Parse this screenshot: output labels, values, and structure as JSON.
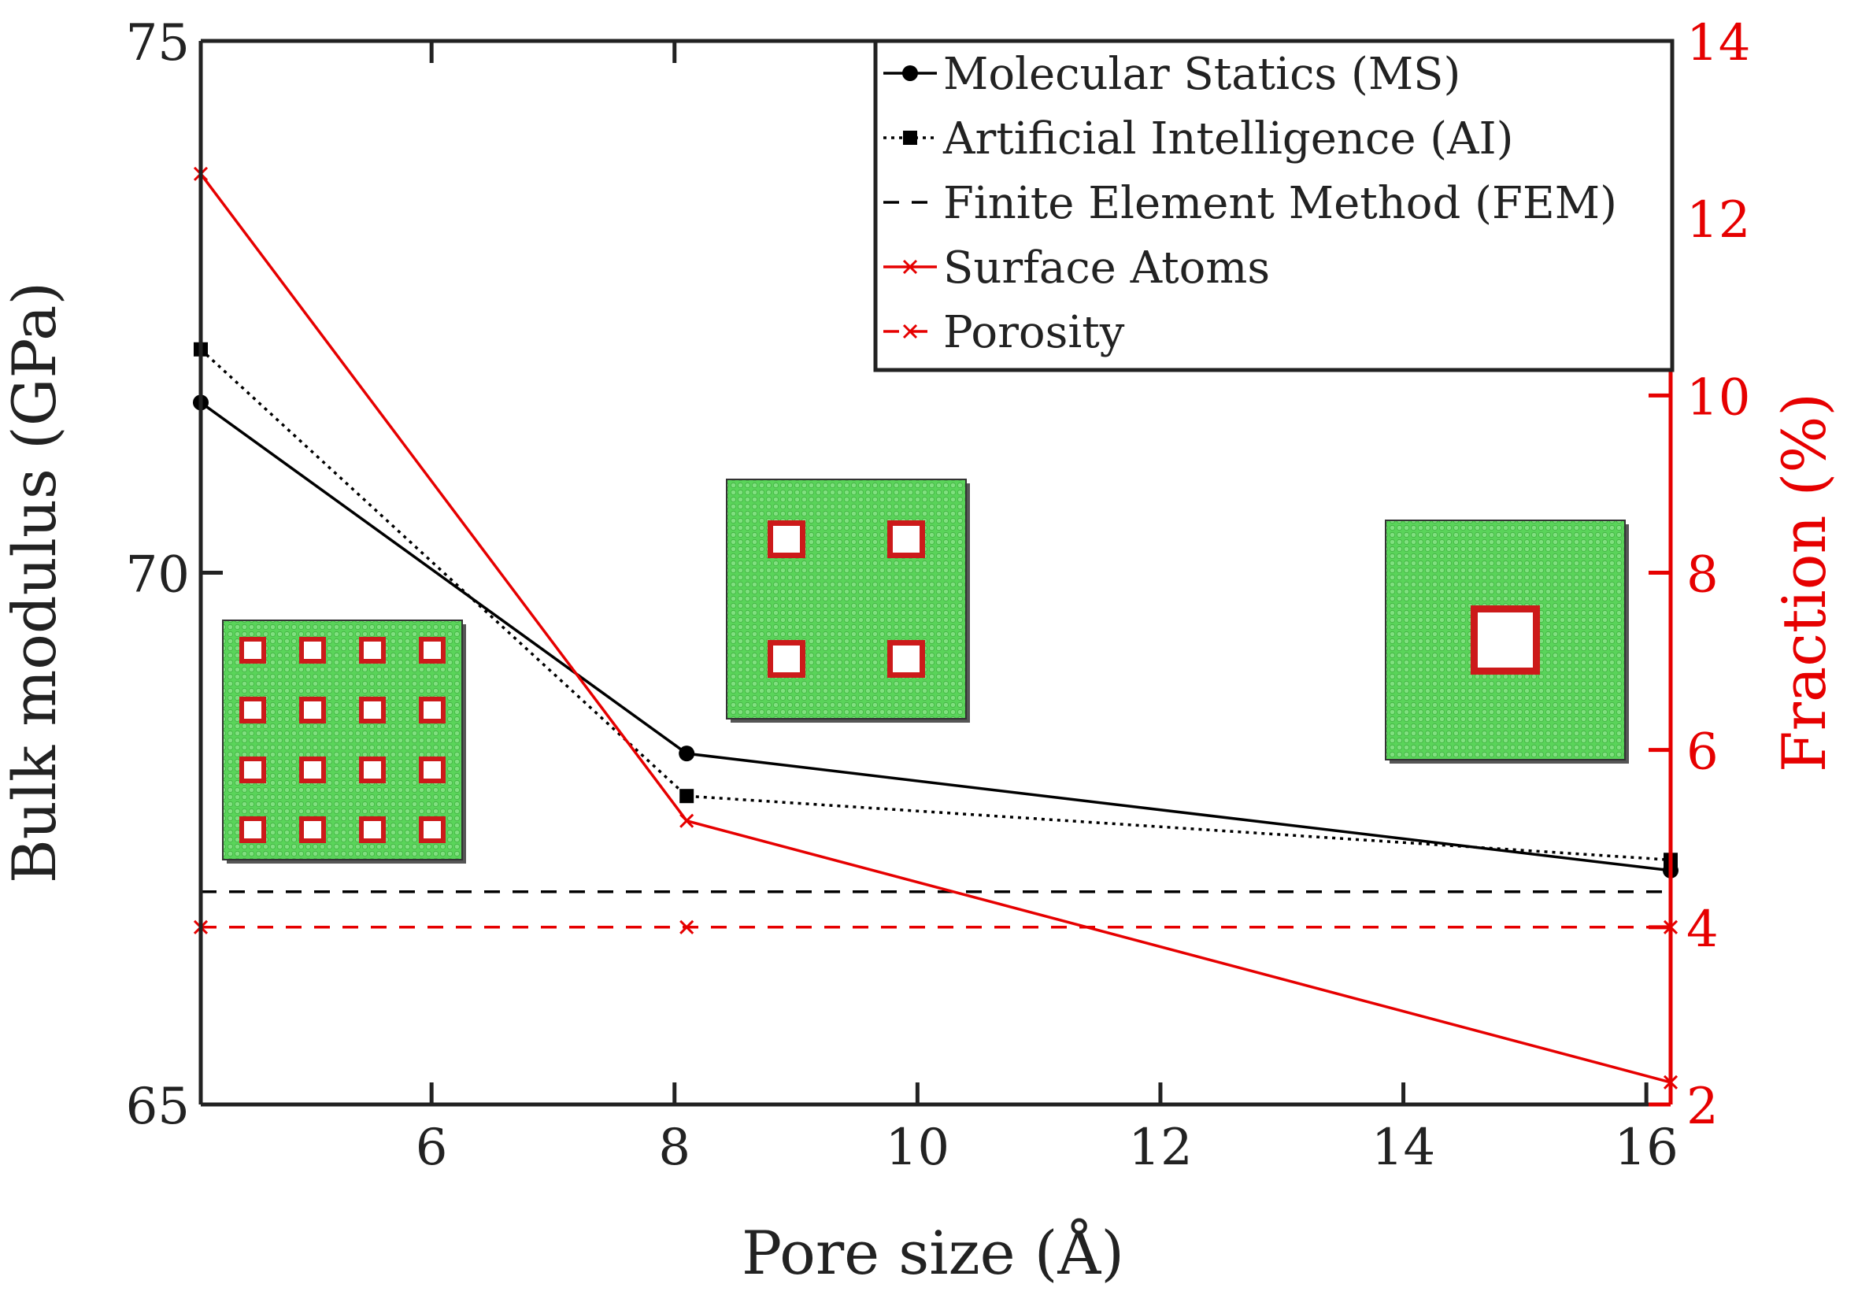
{
  "chart_data": {
    "type": "line",
    "xlabel": "Pore size (Å)",
    "ylabel": "Bulk modulus (GPa)",
    "y2label": "Fraction (%)",
    "xlim": [
      4.1,
      16.2
    ],
    "ylim": [
      65,
      75
    ],
    "y2lim": [
      2,
      14
    ],
    "x_ticks": [
      "6",
      "8",
      "10",
      "12",
      "14",
      "16"
    ],
    "y_ticks": [
      "65",
      "70",
      "75"
    ],
    "y2_ticks": [
      "2",
      "4",
      "6",
      "8",
      "10",
      "12",
      "14"
    ],
    "legend_position": "top-right",
    "series": [
      {
        "name": "Molecular Statics (MS)",
        "axis": "left",
        "color": "#000000",
        "dash": "solid",
        "marker": "circle",
        "x": [
          4.1,
          8.1,
          16.2
        ],
        "y": [
          71.6,
          68.3,
          67.2
        ]
      },
      {
        "name": "Artificial Intelligence (AI)",
        "axis": "left",
        "color": "#000000",
        "dash": "dotted",
        "marker": "square",
        "x": [
          4.1,
          8.1,
          16.2
        ],
        "y": [
          72.1,
          67.9,
          67.3
        ]
      },
      {
        "name": "Finite Element Method (FEM)",
        "axis": "left",
        "color": "#000000",
        "dash": "dashed",
        "marker": "none",
        "x": [
          4.1,
          16.2
        ],
        "y": [
          67.0,
          67.0
        ]
      },
      {
        "name": "Surface Atoms",
        "axis": "right",
        "color": "#e60000",
        "dash": "solid",
        "marker": "x",
        "x": [
          4.1,
          8.1,
          16.2
        ],
        "y": [
          12.5,
          5.2,
          2.25
        ]
      },
      {
        "name": "Porosity",
        "axis": "right",
        "color": "#e60000",
        "dash": "dashed",
        "marker": "x",
        "x": [
          4.1,
          8.1,
          16.2
        ],
        "y": [
          4.0,
          4.0,
          4.0
        ]
      }
    ],
    "insets": [
      {
        "name": "16-pore-configuration",
        "grid": 4
      },
      {
        "name": "4-pore-configuration",
        "grid": 2
      },
      {
        "name": "1-pore-configuration",
        "grid": 1
      }
    ],
    "colors": {
      "atoms": "#5ad45a",
      "surface": "#cc1a1a",
      "left_axis": "#222222",
      "right_axis": "#e60000"
    }
  }
}
